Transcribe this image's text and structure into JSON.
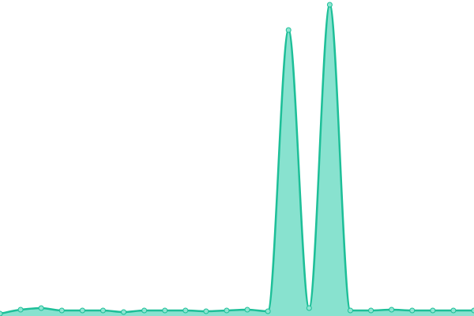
{
  "chart_data": {
    "type": "area",
    "values": [
      0.75,
      2,
      2.5,
      1.75,
      1.75,
      1.75,
      1.25,
      1.75,
      1.75,
      1.75,
      1.5,
      1.75,
      2,
      1.5,
      90.5,
      2.5,
      98.5,
      1.75,
      1.75,
      2,
      1.75,
      1.75,
      1.75,
      1.75
    ],
    "ylim": [
      0,
      100
    ],
    "color": "#1dbf98",
    "fill_color": "#88e2cf",
    "point_fill": "#8fe6d2"
  }
}
